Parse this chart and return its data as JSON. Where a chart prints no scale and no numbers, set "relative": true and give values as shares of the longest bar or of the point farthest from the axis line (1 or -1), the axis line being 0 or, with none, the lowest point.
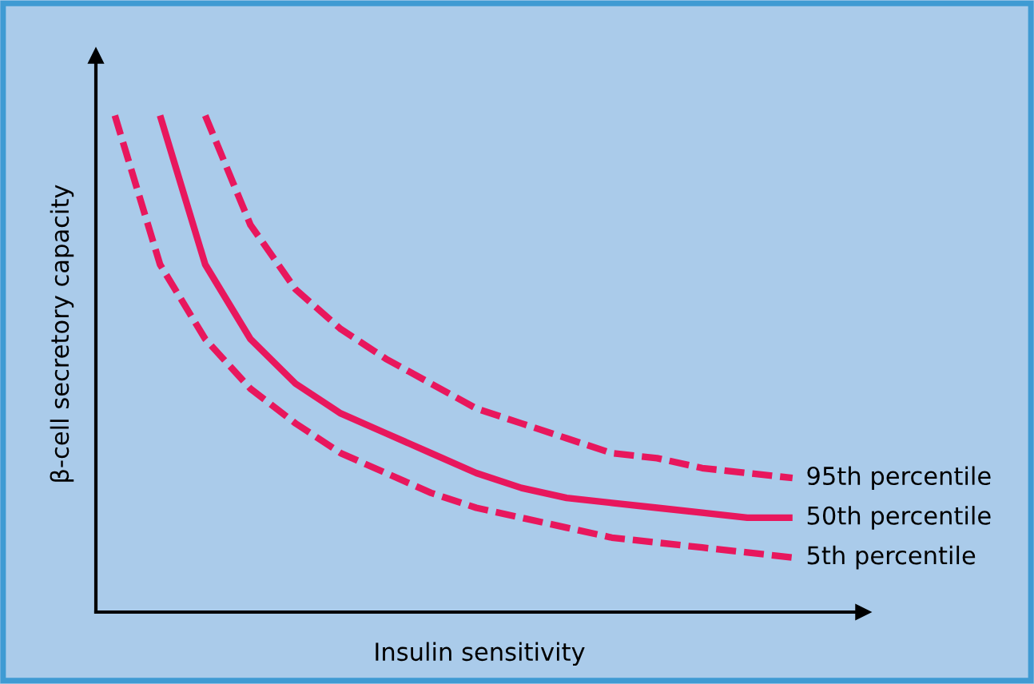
{
  "chart_data": {
    "type": "line",
    "relative": true,
    "xlabel": "Insulin sensitivity",
    "ylabel": "β-cell secretory capacity",
    "categories": [
      null,
      null,
      null,
      null,
      null,
      null,
      null,
      null,
      null,
      null,
      null,
      null,
      null,
      null,
      null,
      null
    ],
    "series": [
      {
        "name": "95th percentile",
        "color": "#e8175d",
        "line_style": "dashed",
        "values": [
          null,
          null,
          1.0,
          0.78,
          0.65,
          0.57,
          0.51,
          0.46,
          0.41,
          0.38,
          0.35,
          0.32,
          0.31,
          0.29,
          0.28,
          0.27
        ]
      },
      {
        "name": "50th percentile",
        "color": "#e8175d",
        "line_style": "solid",
        "values": [
          null,
          1.0,
          0.7,
          0.55,
          0.46,
          0.4,
          0.36,
          0.32,
          0.28,
          0.25,
          0.23,
          0.22,
          0.21,
          0.2,
          0.19,
          0.19
        ]
      },
      {
        "name": "5th percentile",
        "color": "#e8175d",
        "line_style": "dashed",
        "values": [
          1.0,
          0.7,
          0.55,
          0.45,
          0.38,
          0.32,
          0.28,
          0.24,
          0.21,
          0.19,
          0.17,
          0.15,
          0.14,
          0.13,
          0.12,
          0.11
        ]
      }
    ],
    "grid": false,
    "marker": "none"
  }
}
